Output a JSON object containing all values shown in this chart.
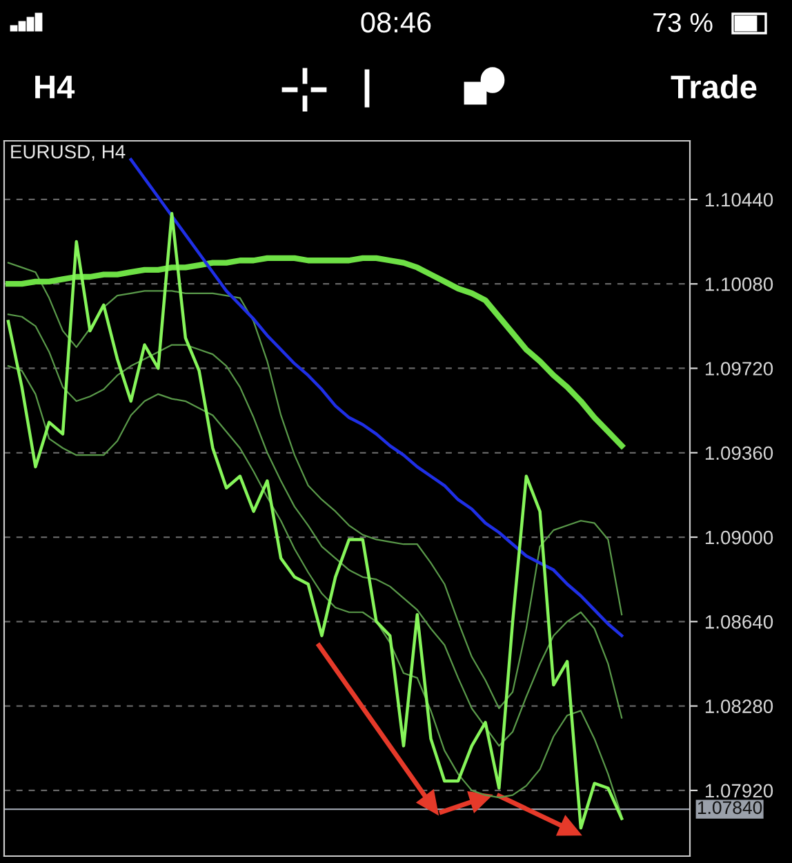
{
  "chart_data": {
    "type": "line",
    "title": "EURUSD, H4",
    "categories": [
      null,
      null,
      null,
      null,
      null,
      null,
      null,
      null,
      null,
      null,
      null,
      null,
      null,
      null,
      null,
      null,
      null,
      null,
      null,
      null,
      null,
      null,
      null,
      null,
      null,
      null,
      null,
      null,
      null,
      null,
      null,
      null,
      null,
      null,
      null,
      null,
      null,
      null,
      null,
      null,
      null,
      null,
      null,
      null,
      null,
      null
    ],
    "series": [
      {
        "color": "#5a9a4a",
        "values": [
          1.1017,
          1.1015,
          1.1013,
          1.1002,
          1.0988,
          1.0981,
          1.0989,
          1.0998,
          1.1003,
          1.1004,
          1.1005,
          1.1005,
          1.1005,
          1.1004,
          1.1004,
          1.1004,
          1.1003,
          1.1002,
          1.0992,
          1.0975,
          1.0952,
          1.0935,
          1.0922,
          1.0916,
          1.0911,
          1.0905,
          1.0901,
          1.0899,
          1.0898,
          1.0897,
          1.0897,
          1.0889,
          1.088,
          1.0864,
          1.0849,
          1.0839,
          1.0827,
          1.0834,
          1.0861,
          1.0896,
          1.0903,
          1.0905,
          1.0907,
          1.0906,
          1.0899,
          1.0867
        ]
      },
      {
        "color": "#5a9a4a",
        "values": [
          1.0995,
          1.0994,
          1.099,
          1.0979,
          1.0964,
          1.0958,
          1.096,
          1.0963,
          1.0969,
          1.0973,
          1.0976,
          1.0979,
          1.0982,
          1.0982,
          1.098,
          1.0978,
          1.0973,
          1.0964,
          1.0951,
          1.0936,
          1.0924,
          1.0913,
          1.0905,
          1.0896,
          1.0891,
          1.0886,
          1.0883,
          1.0882,
          1.0879,
          1.0874,
          1.0869,
          1.0861,
          1.0854,
          1.084,
          1.0827,
          1.0819,
          1.0811,
          1.0817,
          1.0832,
          1.0846,
          1.0858,
          1.0864,
          1.0868,
          1.0861,
          1.0846,
          1.0823
        ]
      },
      {
        "color": "#5a9a4a",
        "values": [
          1.0973,
          1.0971,
          1.0961,
          1.0942,
          1.0938,
          1.0935,
          1.0935,
          1.0935,
          1.0941,
          1.0952,
          1.0958,
          1.0961,
          1.0959,
          1.0958,
          1.0955,
          1.0952,
          1.0945,
          1.0938,
          1.0928,
          1.0917,
          1.0907,
          1.0895,
          1.0885,
          1.0876,
          1.087,
          1.0868,
          1.0868,
          1.0864,
          1.0855,
          1.0842,
          1.084,
          1.0826,
          1.0809,
          1.0799,
          1.0792,
          1.079,
          1.0789,
          1.079,
          1.0794,
          1.0801,
          1.0815,
          1.0824,
          1.0826,
          1.0814,
          1.0799,
          1.0781
        ]
      },
      {
        "color": "#6ee045",
        "values": [
          1.1008,
          1.1008,
          1.1009,
          1.1009,
          1.101,
          1.1011,
          1.1011,
          1.1012,
          1.1012,
          1.1013,
          1.1014,
          1.1014,
          1.1015,
          1.1015,
          1.1016,
          1.1017,
          1.1017,
          1.1018,
          1.1018,
          1.1019,
          1.1019,
          1.1019,
          1.1018,
          1.1018,
          1.1018,
          1.1018,
          1.1019,
          1.1019,
          1.1018,
          1.1017,
          1.1015,
          1.1012,
          1.1009,
          1.1006,
          1.1004,
          1.1001,
          1.0994,
          1.0987,
          1.098,
          1.0975,
          1.0969,
          1.0964,
          1.0958,
          1.0951,
          1.0945,
          1.0939
        ]
      },
      {
        "color": "#1f2fe6",
        "values": [
          null,
          null,
          null,
          null,
          null,
          null,
          null,
          null,
          null,
          1.1061,
          1.1053,
          1.1045,
          1.1037,
          1.1029,
          1.1021,
          1.1013,
          1.1005,
          1.0999,
          1.0993,
          1.0986,
          1.098,
          1.0974,
          1.0969,
          1.0963,
          1.0956,
          1.0951,
          1.0948,
          1.0944,
          1.0939,
          1.0935,
          1.093,
          1.0926,
          1.0922,
          1.0916,
          1.0912,
          1.0906,
          1.0902,
          1.0897,
          1.0892,
          1.0889,
          1.0886,
          1.088,
          1.0875,
          1.0869,
          1.0863,
          1.0858
        ]
      },
      {
        "color": "#86f55a",
        "values": [
          1.0992,
          1.0964,
          1.093,
          1.0949,
          1.0944,
          1.1026,
          1.0988,
          1.0999,
          1.0976,
          1.0958,
          1.0982,
          1.0972,
          1.1038,
          1.0985,
          1.0971,
          1.0938,
          1.0921,
          1.0926,
          1.0911,
          1.0924,
          1.0891,
          1.0883,
          1.088,
          1.0858,
          1.0883,
          1.0899,
          1.0899,
          1.0864,
          1.0858,
          1.0811,
          1.0867,
          1.0814,
          1.0796,
          1.0796,
          1.0811,
          1.0821,
          1.0793,
          1.0864,
          1.0926,
          1.0911,
          1.0837,
          1.0847,
          1.0776,
          1.0795,
          1.0793,
          1.078
        ]
      }
    ],
    "ylim": [
      1.0764,
      1.1069
    ],
    "yticks": [
      {
        "value": 1.0792,
        "label": "1.07920"
      },
      {
        "value": 1.0828,
        "label": "1.08280"
      },
      {
        "value": 1.0864,
        "label": "1.08640"
      },
      {
        "value": 1.09,
        "label": "1.09000"
      },
      {
        "value": 1.0936,
        "label": "1.09360"
      },
      {
        "value": 1.0972,
        "label": "1.09720"
      },
      {
        "value": 1.1008,
        "label": "1.10080"
      },
      {
        "value": 1.1044,
        "label": "1.10440"
      }
    ],
    "tick_labels": "y",
    "grid": "y",
    "ref_lines": [
      {
        "axis": "y",
        "value": 1.0784,
        "label": "1.07840",
        "color": "#9aa0aa"
      }
    ],
    "annotations": [
      "08:46",
      "73 %",
      "H4",
      "Trade"
    ]
  }
}
